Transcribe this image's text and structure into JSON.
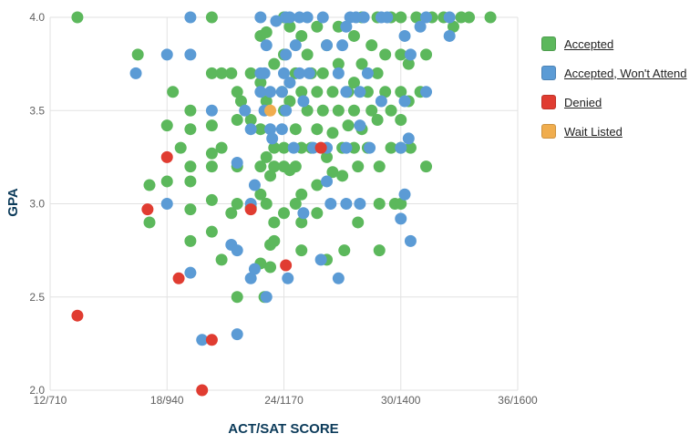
{
  "chart_data": {
    "type": "scatter",
    "title": "",
    "xlabel": "ACT/SAT SCORE",
    "ylabel": "GPA",
    "x_ticks": [
      "12/710",
      "18/940",
      "24/1170",
      "30/1400",
      "36/1600"
    ],
    "x_tick_values": [
      12,
      18,
      24,
      30,
      36
    ],
    "y_ticks": [
      "2.0",
      "2.5",
      "3.0",
      "3.5",
      "4.0"
    ],
    "y_tick_values": [
      2.0,
      2.5,
      3.0,
      3.5,
      4.0
    ],
    "xlim": [
      12,
      36
    ],
    "ylim": [
      2.0,
      4.0
    ],
    "grid": true,
    "legend_position": "right",
    "series": [
      {
        "name": "Accepted",
        "color": "#5cb85c",
        "points": [
          [
            13.4,
            4.0
          ],
          [
            16.5,
            3.8
          ],
          [
            17.1,
            3.1
          ],
          [
            17.1,
            2.9
          ],
          [
            18.0,
            3.42
          ],
          [
            18.0,
            3.12
          ],
          [
            18.3,
            3.6
          ],
          [
            18.7,
            3.3
          ],
          [
            19.2,
            3.5
          ],
          [
            19.2,
            3.4
          ],
          [
            19.2,
            3.2
          ],
          [
            19.2,
            3.12
          ],
          [
            19.2,
            2.97
          ],
          [
            19.2,
            2.8
          ],
          [
            20.3,
            4.0
          ],
          [
            20.3,
            3.7
          ],
          [
            20.3,
            3.42
          ],
          [
            20.3,
            3.27
          ],
          [
            20.3,
            3.2
          ],
          [
            20.3,
            3.02
          ],
          [
            20.3,
            2.85
          ],
          [
            20.8,
            3.7
          ],
          [
            20.8,
            3.3
          ],
          [
            20.8,
            2.7
          ],
          [
            21.3,
            3.7
          ],
          [
            21.3,
            2.95
          ],
          [
            21.6,
            3.6
          ],
          [
            21.6,
            3.45
          ],
          [
            21.6,
            3.2
          ],
          [
            21.6,
            3.0
          ],
          [
            21.6,
            2.5
          ],
          [
            21.8,
            3.55
          ],
          [
            22.3,
            3.7
          ],
          [
            22.3,
            3.45
          ],
          [
            22.3,
            2.98
          ],
          [
            22.8,
            3.9
          ],
          [
            22.8,
            3.65
          ],
          [
            22.8,
            3.4
          ],
          [
            22.8,
            3.2
          ],
          [
            22.8,
            3.05
          ],
          [
            22.8,
            2.68
          ],
          [
            23.0,
            2.5
          ],
          [
            23.1,
            3.92
          ],
          [
            23.1,
            3.55
          ],
          [
            23.1,
            3.25
          ],
          [
            23.1,
            3.0
          ],
          [
            23.3,
            3.15
          ],
          [
            23.3,
            2.78
          ],
          [
            23.3,
            2.66
          ],
          [
            23.5,
            3.75
          ],
          [
            23.5,
            3.3
          ],
          [
            23.5,
            3.2
          ],
          [
            23.5,
            2.9
          ],
          [
            23.5,
            2.8
          ],
          [
            23.9,
            3.6
          ],
          [
            24.0,
            4.0
          ],
          [
            24.0,
            3.8
          ],
          [
            24.0,
            3.5
          ],
          [
            24.0,
            3.3
          ],
          [
            24.0,
            3.2
          ],
          [
            24.0,
            2.95
          ],
          [
            24.3,
            3.95
          ],
          [
            24.3,
            3.55
          ],
          [
            24.3,
            3.18
          ],
          [
            24.6,
            3.7
          ],
          [
            24.6,
            3.4
          ],
          [
            24.6,
            3.2
          ],
          [
            24.6,
            3.0
          ],
          [
            24.9,
            3.9
          ],
          [
            24.9,
            3.6
          ],
          [
            24.9,
            3.3
          ],
          [
            24.9,
            3.05
          ],
          [
            24.9,
            2.9
          ],
          [
            24.9,
            2.75
          ],
          [
            25.2,
            3.8
          ],
          [
            25.2,
            3.5
          ],
          [
            25.4,
            3.7
          ],
          [
            25.4,
            3.3
          ],
          [
            25.7,
            3.95
          ],
          [
            25.7,
            3.6
          ],
          [
            25.7,
            3.4
          ],
          [
            25.7,
            3.1
          ],
          [
            25.7,
            2.95
          ],
          [
            26.0,
            3.7
          ],
          [
            26.0,
            3.5
          ],
          [
            26.2,
            3.85
          ],
          [
            26.2,
            3.25
          ],
          [
            26.2,
            2.7
          ],
          [
            26.5,
            3.6
          ],
          [
            26.5,
            3.38
          ],
          [
            26.5,
            3.17
          ],
          [
            26.8,
            3.95
          ],
          [
            26.8,
            3.75
          ],
          [
            26.8,
            3.5
          ],
          [
            27.0,
            3.3
          ],
          [
            27.0,
            3.15
          ],
          [
            27.1,
            2.75
          ],
          [
            27.3,
            3.6
          ],
          [
            27.3,
            3.42
          ],
          [
            27.6,
            3.9
          ],
          [
            27.6,
            3.65
          ],
          [
            27.6,
            3.5
          ],
          [
            27.6,
            3.3
          ],
          [
            27.8,
            3.2
          ],
          [
            27.8,
            2.9
          ],
          [
            28.0,
            4.0
          ],
          [
            28.0,
            3.75
          ],
          [
            28.0,
            3.4
          ],
          [
            28.3,
            3.6
          ],
          [
            28.3,
            3.3
          ],
          [
            28.5,
            3.85
          ],
          [
            28.5,
            3.5
          ],
          [
            28.8,
            4.0
          ],
          [
            28.8,
            3.7
          ],
          [
            28.8,
            3.45
          ],
          [
            28.9,
            3.2
          ],
          [
            28.9,
            3.0
          ],
          [
            28.9,
            2.75
          ],
          [
            29.2,
            3.8
          ],
          [
            29.2,
            3.6
          ],
          [
            29.5,
            4.0
          ],
          [
            29.5,
            3.5
          ],
          [
            29.5,
            3.3
          ],
          [
            29.7,
            3.0
          ],
          [
            30.0,
            4.0
          ],
          [
            30.0,
            3.8
          ],
          [
            30.0,
            3.6
          ],
          [
            30.0,
            3.45
          ],
          [
            30.0,
            3.3
          ],
          [
            30.0,
            3.0
          ],
          [
            30.4,
            3.75
          ],
          [
            30.4,
            3.55
          ],
          [
            30.5,
            3.3
          ],
          [
            30.8,
            4.0
          ],
          [
            31.0,
            3.6
          ],
          [
            31.3,
            3.8
          ],
          [
            31.3,
            3.2
          ],
          [
            31.6,
            4.0
          ],
          [
            32.2,
            4.0
          ],
          [
            32.7,
            3.95
          ],
          [
            33.1,
            4.0
          ],
          [
            33.5,
            4.0
          ],
          [
            34.6,
            4.0
          ]
        ]
      },
      {
        "name": "Accepted, Won't Attend",
        "color": "#5b9bd5",
        "points": [
          [
            16.4,
            3.7
          ],
          [
            18.0,
            3.8
          ],
          [
            18.0,
            3.0
          ],
          [
            19.2,
            4.0
          ],
          [
            19.2,
            3.8
          ],
          [
            19.2,
            2.63
          ],
          [
            19.8,
            2.27
          ],
          [
            20.3,
            3.5
          ],
          [
            21.3,
            2.78
          ],
          [
            21.6,
            3.22
          ],
          [
            21.6,
            2.75
          ],
          [
            21.6,
            2.3
          ],
          [
            22.0,
            3.5
          ],
          [
            22.3,
            3.4
          ],
          [
            22.3,
            3.0
          ],
          [
            22.3,
            2.6
          ],
          [
            22.5,
            2.65
          ],
          [
            22.5,
            3.1
          ],
          [
            22.8,
            4.0
          ],
          [
            22.8,
            3.7
          ],
          [
            22.8,
            3.6
          ],
          [
            23.0,
            3.7
          ],
          [
            23.0,
            3.5
          ],
          [
            23.1,
            3.85
          ],
          [
            23.1,
            2.5
          ],
          [
            23.3,
            3.6
          ],
          [
            23.3,
            3.4
          ],
          [
            23.4,
            3.35
          ],
          [
            23.6,
            3.98
          ],
          [
            23.9,
            3.6
          ],
          [
            23.9,
            3.4
          ],
          [
            24.0,
            3.7
          ],
          [
            24.1,
            4.0
          ],
          [
            24.1,
            3.8
          ],
          [
            24.1,
            3.5
          ],
          [
            24.2,
            2.6
          ],
          [
            24.3,
            4.0
          ],
          [
            24.3,
            3.65
          ],
          [
            24.5,
            3.3
          ],
          [
            24.6,
            3.85
          ],
          [
            24.8,
            4.0
          ],
          [
            24.8,
            3.7
          ],
          [
            25.0,
            3.55
          ],
          [
            25.0,
            2.95
          ],
          [
            25.2,
            4.0
          ],
          [
            25.3,
            3.7
          ],
          [
            25.5,
            3.3
          ],
          [
            25.9,
            2.7
          ],
          [
            26.0,
            4.0
          ],
          [
            26.2,
            3.85
          ],
          [
            26.2,
            3.3
          ],
          [
            26.2,
            3.12
          ],
          [
            26.4,
            3.0
          ],
          [
            26.8,
            3.7
          ],
          [
            26.8,
            2.6
          ],
          [
            27.0,
            3.85
          ],
          [
            27.2,
            3.95
          ],
          [
            27.2,
            3.6
          ],
          [
            27.2,
            3.3
          ],
          [
            27.2,
            3.0
          ],
          [
            27.4,
            4.0
          ],
          [
            27.7,
            4.0
          ],
          [
            27.9,
            3.6
          ],
          [
            27.9,
            3.42
          ],
          [
            27.9,
            3.0
          ],
          [
            28.1,
            4.0
          ],
          [
            28.3,
            3.7
          ],
          [
            28.4,
            3.3
          ],
          [
            29.0,
            4.0
          ],
          [
            29.0,
            3.55
          ],
          [
            29.3,
            4.0
          ],
          [
            30.0,
            3.3
          ],
          [
            30.0,
            2.92
          ],
          [
            30.2,
            3.9
          ],
          [
            30.2,
            3.55
          ],
          [
            30.2,
            3.05
          ],
          [
            30.4,
            3.35
          ],
          [
            30.5,
            3.8
          ],
          [
            30.5,
            2.8
          ],
          [
            31.0,
            3.95
          ],
          [
            31.3,
            3.6
          ],
          [
            31.3,
            4.0
          ],
          [
            32.5,
            3.9
          ],
          [
            32.5,
            4.0
          ]
        ]
      },
      {
        "name": "Denied",
        "color": "#e03c31",
        "points": [
          [
            13.4,
            2.4
          ],
          [
            17.0,
            2.97
          ],
          [
            18.0,
            3.25
          ],
          [
            18.6,
            2.6
          ],
          [
            19.8,
            2.0
          ],
          [
            20.3,
            2.27
          ],
          [
            22.3,
            2.97
          ],
          [
            24.1,
            2.67
          ],
          [
            25.9,
            3.3
          ]
        ]
      },
      {
        "name": "Wait Listed",
        "color": "#f0ad4e",
        "points": [
          [
            23.3,
            3.5
          ]
        ]
      }
    ]
  }
}
